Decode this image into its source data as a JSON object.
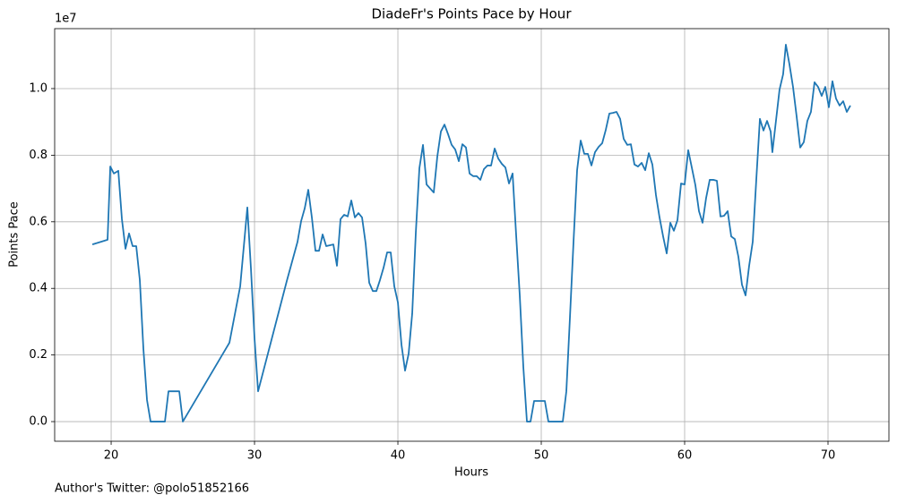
{
  "chart_data": {
    "type": "line",
    "title": "DiadeFr's Points Pace by Hour",
    "x_label": "Hours",
    "y_label": "Points Pace",
    "y_offset_label": "1e7",
    "footnote": "Author's Twitter: @polo51852166",
    "xlim": [
      16.06,
      74.25
    ],
    "ylim": [
      -590000,
      11800000
    ],
    "xticks": [
      20,
      30,
      40,
      50,
      60,
      70
    ],
    "yticks": [
      {
        "value": 0,
        "label": "0.0"
      },
      {
        "value": 2000000,
        "label": "0.2"
      },
      {
        "value": 4000000,
        "label": "0.4"
      },
      {
        "value": 6000000,
        "label": "0.6"
      },
      {
        "value": 8000000,
        "label": "0.8"
      },
      {
        "value": 10000000,
        "label": "1.0"
      }
    ],
    "grid": true,
    "x": [
      18.69,
      19.75,
      19.94,
      20.19,
      20.5,
      20.75,
      21.0,
      21.25,
      21.5,
      21.75,
      22.0,
      22.25,
      22.5,
      22.75,
      23.75,
      24.0,
      24.75,
      25.0,
      28.25,
      29.0,
      29.5,
      29.75,
      30.0,
      30.25,
      32.25,
      33.0,
      33.25,
      33.5,
      33.75,
      34.0,
      34.25,
      34.5,
      34.75,
      35.0,
      35.5,
      35.75,
      36.0,
      36.25,
      36.5,
      36.75,
      37.0,
      37.25,
      37.5,
      37.75,
      38.0,
      38.25,
      38.5,
      38.75,
      39.0,
      39.25,
      39.5,
      39.75,
      40.0,
      40.25,
      40.5,
      40.75,
      41.0,
      41.25,
      41.5,
      41.75,
      42.0,
      42.5,
      42.75,
      43.0,
      43.25,
      43.5,
      43.75,
      44.0,
      44.25,
      44.5,
      44.75,
      45.0,
      45.25,
      45.5,
      45.75,
      46.0,
      46.25,
      46.5,
      46.75,
      47.0,
      47.25,
      47.5,
      47.75,
      48.0,
      48.25,
      48.5,
      48.75,
      49.0,
      49.25,
      49.5,
      50.25,
      50.5,
      51.5,
      51.75,
      52.0,
      52.25,
      52.5,
      52.75,
      53.0,
      53.25,
      53.5,
      53.75,
      54.0,
      54.25,
      54.5,
      54.75,
      55.0,
      55.25,
      55.5,
      55.75,
      56.0,
      56.25,
      56.5,
      56.75,
      57.0,
      57.25,
      57.5,
      57.75,
      58.0,
      58.25,
      58.5,
      58.75,
      59.0,
      59.25,
      59.5,
      59.75,
      60.0,
      60.25,
      60.5,
      60.75,
      61.0,
      61.25,
      61.5,
      61.75,
      62.0,
      62.25,
      62.5,
      62.75,
      63.0,
      63.25,
      63.5,
      63.75,
      64.0,
      64.25,
      64.5,
      64.75,
      65.0,
      65.25,
      65.5,
      65.75,
      66.0,
      66.12,
      66.37,
      66.62,
      66.87,
      67.06,
      67.31,
      67.56,
      67.81,
      68.06,
      68.31,
      68.56,
      68.81,
      69.06,
      69.31,
      69.56,
      69.81,
      70.06,
      70.31,
      70.56,
      70.81,
      71.06,
      71.31,
      71.56
    ],
    "series": [
      {
        "name": "Points Pace",
        "color": "#1f77b4",
        "values": [
          5320000,
          5460000,
          7660000,
          7450000,
          7530000,
          6080000,
          5190000,
          5650000,
          5270000,
          5270000,
          4250000,
          2180000,
          650000,
          0,
          0,
          910000,
          910000,
          0,
          2370000,
          4060000,
          6430000,
          4600000,
          2500000,
          910000,
          4220000,
          5400000,
          6020000,
          6400000,
          6960000,
          6130000,
          5130000,
          5130000,
          5620000,
          5270000,
          5320000,
          4680000,
          6080000,
          6210000,
          6160000,
          6640000,
          6130000,
          6260000,
          6130000,
          5350000,
          4170000,
          3920000,
          3920000,
          4250000,
          4620000,
          5080000,
          5080000,
          4060000,
          3580000,
          2310000,
          1530000,
          2040000,
          3250000,
          5670000,
          7610000,
          8310000,
          7120000,
          6880000,
          7960000,
          8710000,
          8920000,
          8630000,
          8310000,
          8170000,
          7820000,
          8330000,
          8230000,
          7450000,
          7370000,
          7370000,
          7260000,
          7580000,
          7690000,
          7690000,
          8200000,
          7900000,
          7740000,
          7630000,
          7150000,
          7450000,
          5590000,
          3790000,
          1640000,
          0,
          0,
          620000,
          620000,
          0,
          0,
          910000,
          3120000,
          5400000,
          7550000,
          8440000,
          8040000,
          8040000,
          7690000,
          8090000,
          8250000,
          8360000,
          8760000,
          9250000,
          9270000,
          9300000,
          9090000,
          8490000,
          8310000,
          8330000,
          7720000,
          7660000,
          7770000,
          7550000,
          8060000,
          7720000,
          6800000,
          6130000,
          5560000,
          5050000,
          5970000,
          5730000,
          6050000,
          7150000,
          7120000,
          8150000,
          7630000,
          7100000,
          6320000,
          5970000,
          6720000,
          7260000,
          7260000,
          7230000,
          6160000,
          6180000,
          6320000,
          5560000,
          5480000,
          4950000,
          4110000,
          3790000,
          4680000,
          5400000,
          7280000,
          9090000,
          8740000,
          9030000,
          8710000,
          8090000,
          9030000,
          9970000,
          10430000,
          11320000,
          10730000,
          10050000,
          9170000,
          8230000,
          8390000,
          9030000,
          9300000,
          10190000,
          10050000,
          9780000,
          10050000,
          9440000,
          10220000,
          9700000,
          9490000,
          9620000,
          9300000,
          9490000
        ]
      }
    ]
  }
}
